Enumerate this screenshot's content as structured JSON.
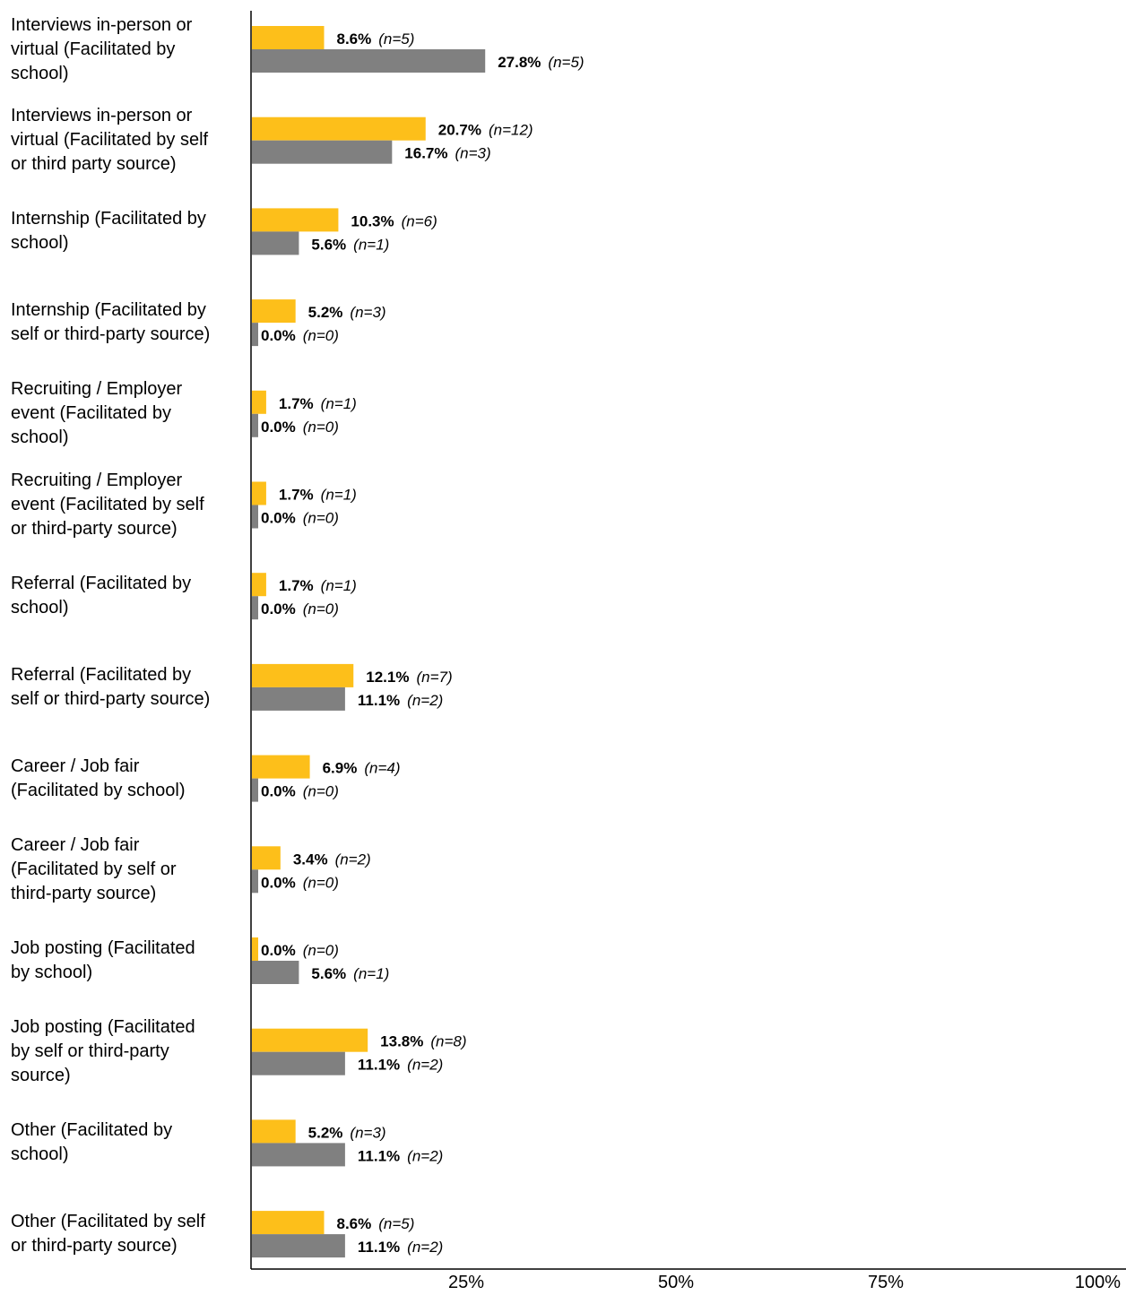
{
  "chart_data": {
    "type": "bar",
    "orientation": "horizontal",
    "categories": [
      "Interviews in-person or\nvirtual (Facilitated by\nschool)",
      "Interviews in-person or\nvirtual (Facilitated by self\nor third party source)",
      "Internship (Facilitated by\nschool)",
      "Internship (Facilitated by\nself or third-party source)",
      "Recruiting / Employer\nevent (Facilitated by\nschool)",
      "Recruiting / Employer\nevent (Facilitated by self\nor third-party source)",
      "Referral (Facilitated by\nschool)",
      "Referral (Facilitated by\nself or third-party source)",
      "Career / Job fair\n(Facilitated by school)",
      "Career / Job fair\n(Facilitated by self or\nthird-party source)",
      "Job posting (Facilitated\nby school)",
      "Job posting (Facilitated\nby self or third-party\nsource)",
      "Other (Facilitated by\nschool)",
      "Other (Facilitated by self\nor third-party source)"
    ],
    "series": [
      {
        "color": "#FDBF1A",
        "values": [
          8.6,
          20.7,
          10.3,
          5.2,
          1.7,
          1.7,
          1.7,
          12.1,
          6.9,
          3.4,
          0.0,
          13.8,
          5.2,
          8.6
        ],
        "labels": [
          "8.6%",
          "20.7%",
          "10.3%",
          "5.2%",
          "1.7%",
          "1.7%",
          "1.7%",
          "12.1%",
          "6.9%",
          "3.4%",
          "0.0%",
          "13.8%",
          "5.2%",
          "8.6%"
        ],
        "n_labels": [
          "(n=5)",
          "(n=12)",
          "(n=6)",
          "(n=3)",
          "(n=1)",
          "(n=1)",
          "(n=1)",
          "(n=7)",
          "(n=4)",
          "(n=2)",
          "(n=0)",
          "(n=8)",
          "(n=3)",
          "(n=5)"
        ]
      },
      {
        "color": "#808080",
        "values": [
          27.8,
          16.7,
          5.6,
          0.0,
          0.0,
          0.0,
          0.0,
          11.1,
          0.0,
          0.0,
          5.6,
          11.1,
          11.1,
          11.1
        ],
        "labels": [
          "27.8%",
          "16.7%",
          "5.6%",
          "0.0%",
          "0.0%",
          "0.0%",
          "0.0%",
          "11.1%",
          "0.0%",
          "0.0%",
          "5.6%",
          "11.1%",
          "11.1%",
          "11.1%"
        ],
        "n_labels": [
          "(n=5)",
          "(n=3)",
          "(n=1)",
          "(n=0)",
          "(n=0)",
          "(n=0)",
          "(n=0)",
          "(n=2)",
          "(n=0)",
          "(n=0)",
          "(n=1)",
          "(n=2)",
          "(n=2)",
          "(n=2)"
        ]
      }
    ],
    "xlim": [
      0,
      100
    ],
    "xticks": [
      "25%",
      "50%",
      "75%",
      "100%"
    ],
    "grid": false,
    "legend": "none"
  }
}
